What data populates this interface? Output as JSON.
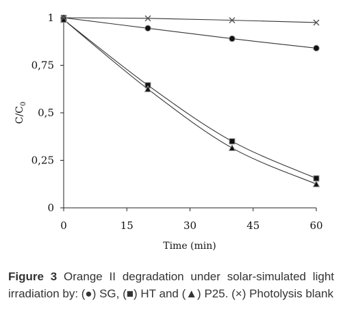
{
  "chart_data": {
    "type": "line",
    "xlabel": "Time (min)",
    "ylabel_main": "C/C",
    "ylabel_sub": "0",
    "xlim": [
      0,
      60
    ],
    "ylim": [
      0,
      1
    ],
    "xticks": [
      "0",
      "15",
      "30",
      "45",
      "60"
    ],
    "xtick_values": [
      0,
      15,
      30,
      45,
      60
    ],
    "yticks": [
      "0",
      "0,25",
      "0,5",
      "0,75",
      "1"
    ],
    "ytick_values": [
      0,
      0.25,
      0.5,
      0.75,
      1
    ],
    "series": [
      {
        "marker": "circle",
        "x": [
          0,
          20,
          40,
          60
        ],
        "y": [
          1.0,
          0.945,
          0.89,
          0.84
        ]
      },
      {
        "marker": "square",
        "x": [
          0,
          20,
          40,
          60
        ],
        "y": [
          0.99,
          0.645,
          0.35,
          0.155
        ]
      },
      {
        "marker": "triangle",
        "x": [
          0,
          20,
          40,
          60
        ],
        "y": [
          0.99,
          0.625,
          0.315,
          0.125
        ]
      },
      {
        "marker": "cross",
        "x": [
          0,
          20,
          40,
          60
        ],
        "y": [
          1.0,
          0.997,
          0.987,
          0.975
        ]
      }
    ],
    "grid": false,
    "legend": "none"
  },
  "caption": {
    "label": "Figure 3",
    "text": " Orange II degradation under solar-simulated light irradiation by: (●) SG, (■) HT and (▲) P25. (×) Photolysis blank"
  }
}
